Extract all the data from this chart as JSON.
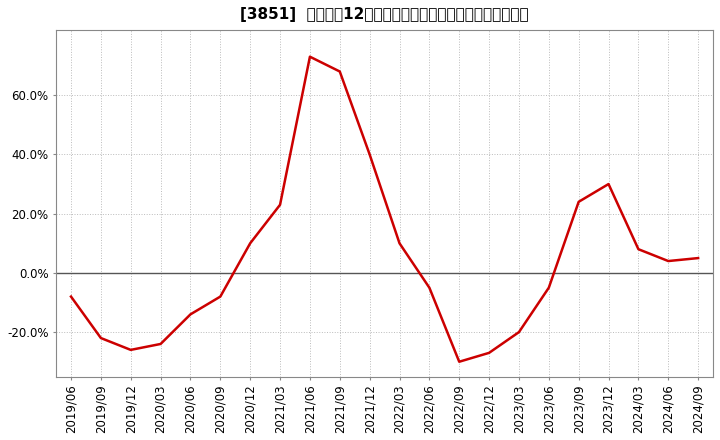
{
  "title": "[3851]  売上高の12か月移動合計の対前年同期増減率の推移",
  "line_color": "#cc0000",
  "background_color": "#ffffff",
  "plot_bg_color": "#ffffff",
  "grid_color": "#bbbbbb",
  "zero_line_color": "#555555",
  "dates": [
    "2019/06",
    "2019/09",
    "2019/12",
    "2020/03",
    "2020/06",
    "2020/09",
    "2020/12",
    "2021/03",
    "2021/06",
    "2021/09",
    "2021/12",
    "2022/03",
    "2022/06",
    "2022/09",
    "2022/12",
    "2023/03",
    "2023/06",
    "2023/09",
    "2023/12",
    "2024/03",
    "2024/06",
    "2024/09"
  ],
  "values": [
    -0.08,
    -0.22,
    -0.26,
    -0.24,
    -0.14,
    -0.08,
    0.1,
    0.23,
    0.73,
    0.68,
    0.4,
    0.1,
    -0.05,
    -0.3,
    -0.27,
    -0.2,
    -0.05,
    0.24,
    0.3,
    0.08,
    0.04,
    0.05
  ],
  "yticks": [
    -0.2,
    0.0,
    0.2,
    0.4,
    0.6
  ],
  "ylim": [
    -0.35,
    0.82
  ],
  "tick_fontsize": 8.5,
  "title_fontsize": 11
}
